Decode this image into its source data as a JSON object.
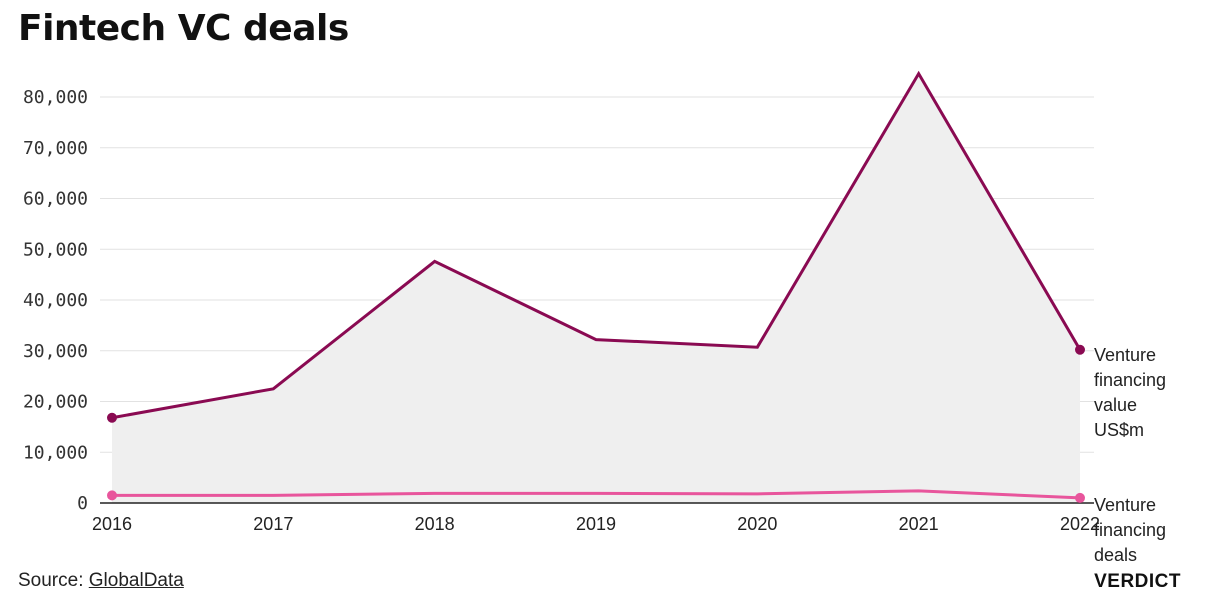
{
  "title": "Fintech VC deals",
  "source": {
    "prefix": "Source: ",
    "link_text": "GlobalData"
  },
  "brand": "VERDICT",
  "colors": {
    "value_line": "#8a0a52",
    "deals_line": "#e8559c",
    "area_fill": "#efefef",
    "grid": "#e2e2e2",
    "axis": "#222222"
  },
  "chart_data": {
    "type": "line",
    "title": "Fintech VC deals",
    "xlabel": "",
    "ylabel": "",
    "x": [
      "2016",
      "2017",
      "2018",
      "2019",
      "2020",
      "2021",
      "2022"
    ],
    "ylim": [
      0,
      80000
    ],
    "yticks": [
      0,
      10000,
      20000,
      30000,
      40000,
      50000,
      60000,
      70000,
      80000
    ],
    "ytick_labels": [
      "0",
      "10,000",
      "20,000",
      "30,000",
      "40,000",
      "50,000",
      "60,000",
      "70,000",
      "80,000"
    ],
    "grid": true,
    "legend": "direct labels at right end of lines",
    "series": [
      {
        "name": "Venture financing value US$m",
        "label_lines": [
          "Venture",
          "financing",
          "value",
          "US$m"
        ],
        "values": [
          16800,
          22500,
          47600,
          32200,
          30700,
          84600,
          30200
        ],
        "area": true
      },
      {
        "name": "Venture financing deals",
        "label_lines": [
          "Venture",
          "financing",
          "deals"
        ],
        "values": [
          1500,
          1500,
          1900,
          1900,
          1800,
          2400,
          1000
        ],
        "area": false
      }
    ]
  }
}
